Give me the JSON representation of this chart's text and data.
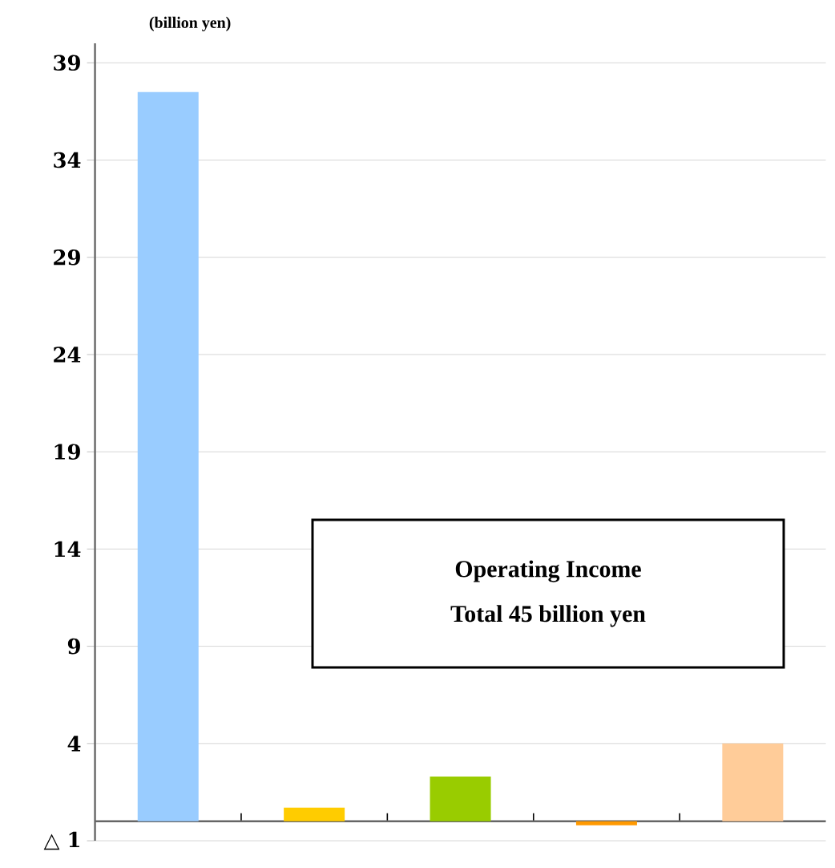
{
  "chart_data": {
    "type": "bar",
    "ylabel": "(billion yen)",
    "categories": [
      null,
      null,
      null,
      null,
      null
    ],
    "values": [
      37.5,
      0.7,
      2.3,
      -0.2,
      4.0
    ],
    "colors": [
      "#99ccff",
      "#ffcc00",
      "#99cc00",
      "#ff9900",
      "#ffcc99"
    ],
    "ylim": [
      -1,
      40
    ],
    "yticks": [
      {
        "value": -1,
        "label": "△ 1"
      },
      4,
      9,
      14,
      19,
      24,
      29,
      34,
      39
    ],
    "grid": "y",
    "annotations": [
      "Operating Income",
      "Total 45 billion yen"
    ]
  }
}
